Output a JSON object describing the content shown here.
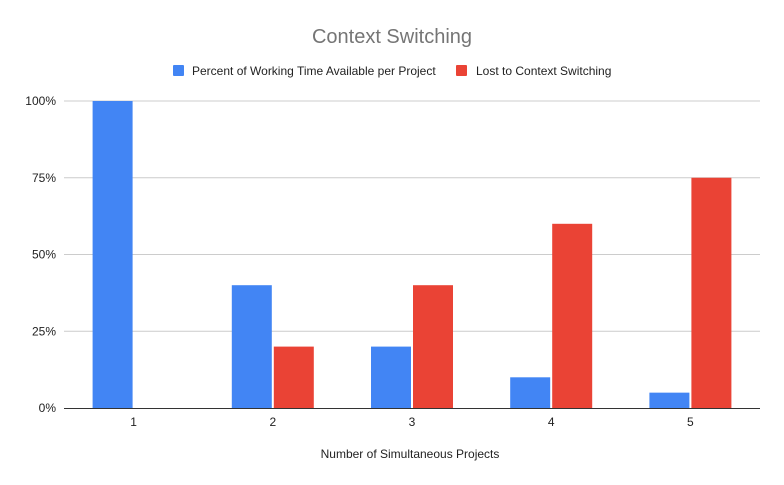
{
  "chart_data": {
    "type": "bar",
    "title": "Context Switching",
    "xlabel": "Number of Simultaneous Projects",
    "ylabel": "",
    "categories": [
      "1",
      "2",
      "3",
      "4",
      "5"
    ],
    "series": [
      {
        "name": "Percent of Working Time Available per Project",
        "color": "#4285f4",
        "values": [
          100,
          40,
          20,
          10,
          5
        ]
      },
      {
        "name": "Lost to Context Switching",
        "color": "#ea4335",
        "values": [
          0,
          20,
          40,
          60,
          75
        ]
      }
    ],
    "ylim": [
      0,
      100
    ],
    "yticks": [
      {
        "value": 0,
        "label": "0%"
      },
      {
        "value": 25,
        "label": "25%"
      },
      {
        "value": 50,
        "label": "50%"
      },
      {
        "value": 75,
        "label": "75%"
      },
      {
        "value": 100,
        "label": "100%"
      }
    ],
    "grid": true,
    "legend_position": "top"
  }
}
